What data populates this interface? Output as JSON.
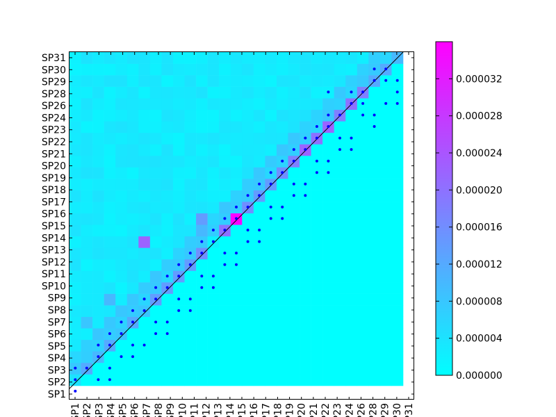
{
  "chart_data": {
    "type": "heatmap",
    "title": "",
    "xlabel": "",
    "ylabel": "",
    "categories": [
      "SP1",
      "SP2",
      "SP3",
      "SP4",
      "SP5",
      "SP6",
      "SP7",
      "SP8",
      "SP9",
      "SP10",
      "SP11",
      "SP12",
      "SP13",
      "SP14",
      "SP15",
      "SP16",
      "SP17",
      "SP18",
      "SP19",
      "SP20",
      "SP21",
      "SP22",
      "SP23",
      "SP24",
      "SP26",
      "SP28",
      "SP29",
      "SP30",
      "SP31"
    ],
    "colormap": {
      "low_color": "#00ffff",
      "high_color": "#ff00ff",
      "vmin": 0,
      "vmax": 3.6e-05
    },
    "colorbar_ticks": [
      "0.000000",
      "0.000004",
      "0.000008",
      "0.000012",
      "0.000016",
      "0.000020",
      "0.000024",
      "0.000028",
      "0.000032"
    ],
    "colorbar_tick_values": [
      0,
      4e-06,
      8e-06,
      1.2e-05,
      1.6e-05,
      2e-05,
      2.4e-05,
      2.8e-05,
      3.2e-05
    ],
    "diagonal_line": true,
    "upper_background_value": 0,
    "diagonal_values": [
      4e-06,
      1.2e-05,
      1e-05,
      1.2e-05,
      8e-06,
      1.2e-05,
      8e-06,
      1.4e-05,
      1.4e-05,
      1.4e-05,
      1.4e-05,
      1.6e-05,
      2e-06,
      2e-05,
      3.6e-05,
      1.6e-05,
      1.4e-05,
      1.4e-05,
      1.6e-05,
      1.8e-05,
      2.2e-05,
      2e-05,
      2.2e-05,
      1.8e-05,
      2e-05,
      1.8e-05,
      1.2e-05,
      1.2e-05,
      1e-05
    ],
    "off_diagonal_highlights": [
      {
        "row": "SP13",
        "col": "SP7",
        "value": 2.2e-05
      },
      {
        "row": "SP15",
        "col": "SP12",
        "value": 1.4e-05
      },
      {
        "row": "SP6",
        "col": "SP2",
        "value": 8e-06
      },
      {
        "row": "SP8",
        "col": "SP4",
        "value": 1e-05
      },
      {
        "row": "SP14",
        "col": "SP12",
        "value": 1e-05
      }
    ],
    "lower_triangle_background": 1.5e-06,
    "significance_points": [
      [
        1,
        1
      ],
      [
        2,
        1
      ],
      [
        2,
        3
      ],
      [
        2,
        4
      ],
      [
        3,
        1
      ],
      [
        3,
        2
      ],
      [
        3,
        4
      ],
      [
        4,
        3
      ],
      [
        4,
        5
      ],
      [
        4,
        6
      ],
      [
        5,
        3
      ],
      [
        5,
        4
      ],
      [
        5,
        6
      ],
      [
        5,
        7
      ],
      [
        6,
        4
      ],
      [
        6,
        5
      ],
      [
        6,
        8
      ],
      [
        6,
        9
      ],
      [
        7,
        5
      ],
      [
        7,
        6
      ],
      [
        7,
        8
      ],
      [
        7,
        9
      ],
      [
        8,
        6
      ],
      [
        8,
        7
      ],
      [
        8,
        10
      ],
      [
        8,
        11
      ],
      [
        9,
        7
      ],
      [
        9,
        8
      ],
      [
        9,
        10
      ],
      [
        9,
        11
      ],
      [
        10,
        8
      ],
      [
        10,
        9
      ],
      [
        10,
        12
      ],
      [
        10,
        13
      ],
      [
        11,
        9
      ],
      [
        11,
        10
      ],
      [
        11,
        12
      ],
      [
        11,
        13
      ],
      [
        12,
        10
      ],
      [
        12,
        11
      ],
      [
        12,
        14
      ],
      [
        12,
        15
      ],
      [
        13,
        11
      ],
      [
        13,
        12
      ],
      [
        13,
        14
      ],
      [
        13,
        15
      ],
      [
        14,
        12
      ],
      [
        14,
        13
      ],
      [
        14,
        16
      ],
      [
        14,
        17
      ],
      [
        15,
        13
      ],
      [
        15,
        14
      ],
      [
        15,
        16
      ],
      [
        15,
        17
      ],
      [
        16,
        14
      ],
      [
        16,
        15
      ],
      [
        16,
        18
      ],
      [
        16,
        19
      ],
      [
        17,
        15
      ],
      [
        17,
        16
      ],
      [
        17,
        18
      ],
      [
        17,
        19
      ],
      [
        18,
        16
      ],
      [
        18,
        17
      ],
      [
        18,
        20
      ],
      [
        18,
        21
      ],
      [
        19,
        17
      ],
      [
        19,
        18
      ],
      [
        19,
        20
      ],
      [
        19,
        21
      ],
      [
        20,
        18
      ],
      [
        20,
        19
      ],
      [
        20,
        22
      ],
      [
        20,
        23
      ],
      [
        21,
        19
      ],
      [
        21,
        20
      ],
      [
        21,
        22
      ],
      [
        21,
        23
      ],
      [
        22,
        20
      ],
      [
        22,
        21
      ],
      [
        22,
        24
      ],
      [
        22,
        25
      ],
      [
        23,
        21
      ],
      [
        23,
        22
      ],
      [
        23,
        24
      ],
      [
        23,
        25
      ],
      [
        24,
        22
      ],
      [
        24,
        23
      ],
      [
        24,
        27
      ],
      [
        25,
        23
      ],
      [
        25,
        24
      ],
      [
        25,
        26
      ],
      [
        25,
        27
      ],
      [
        26,
        25
      ],
      [
        26,
        26
      ],
      [
        26,
        28
      ],
      [
        26,
        29
      ],
      [
        27,
        23
      ],
      [
        27,
        25
      ],
      [
        27,
        26
      ],
      [
        27,
        29
      ],
      [
        28,
        27
      ],
      [
        28,
        28
      ],
      [
        28,
        29
      ],
      [
        29,
        27
      ],
      [
        29,
        28
      ]
    ]
  }
}
